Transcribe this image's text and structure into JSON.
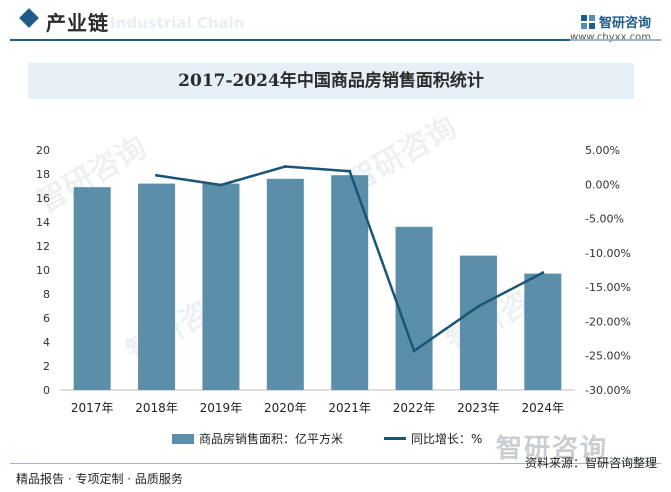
{
  "header": {
    "section_title": "产业链",
    "section_subtitle": "Industrial Chain",
    "brand_name": "智研咨询",
    "brand_url": "www.chyxx.com"
  },
  "watermark": "智研咨询",
  "footer": {
    "logo_text": "智研咨询",
    "source": "资料来源：智研咨询整理",
    "promo": "精品报告 · 专项定制 · 品质服务"
  },
  "chart_data": {
    "type": "bar+line",
    "title": "2017-2024年中国商品房销售面积统计",
    "categories": [
      "2017年",
      "2018年",
      "2019年",
      "2020年",
      "2021年",
      "2022年",
      "2023年",
      "2024年"
    ],
    "series": [
      {
        "name": "商品房销售面积：亿平方米",
        "type": "bar",
        "axis": "left",
        "color": "#5b8ea8",
        "values": [
          16.9,
          17.2,
          17.2,
          17.6,
          17.9,
          13.6,
          11.2,
          9.7
        ]
      },
      {
        "name": "同比增长：%",
        "type": "line",
        "axis": "right",
        "color": "#1a5577",
        "values": [
          null,
          1.3,
          -0.1,
          2.6,
          1.9,
          -24.3,
          -17.8,
          -12.9
        ]
      }
    ],
    "y_left": {
      "min": 0,
      "max": 20,
      "ticks": [
        "0",
        "2",
        "4",
        "6",
        "8",
        "10",
        "12",
        "14",
        "16",
        "18",
        "20"
      ]
    },
    "y_right": {
      "min": -30,
      "max": 5,
      "ticks": [
        "5.00%",
        "0.00%",
        "-5.00%",
        "-10.00%",
        "-15.00%",
        "-20.00%",
        "-25.00%",
        "-30.00%"
      ],
      "tick_values": [
        5,
        0,
        -5,
        -10,
        -15,
        -20,
        -25,
        -30
      ]
    },
    "legend_position": "bottom",
    "grid": false
  }
}
